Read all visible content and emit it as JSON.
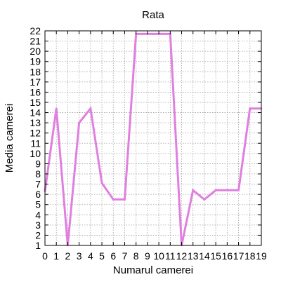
{
  "chart_data": {
    "type": "line",
    "title": "Rata",
    "xlabel": "Numarul camerei",
    "ylabel": "Media camerei",
    "xlim": [
      0,
      19
    ],
    "ylim": [
      1,
      22
    ],
    "x_ticks": [
      0,
      1,
      2,
      3,
      4,
      5,
      6,
      7,
      8,
      9,
      10,
      11,
      12,
      13,
      14,
      15,
      16,
      17,
      18,
      19
    ],
    "y_ticks": [
      1,
      2,
      3,
      4,
      5,
      6,
      7,
      8,
      9,
      10,
      11,
      12,
      13,
      14,
      15,
      16,
      17,
      18,
      19,
      20,
      21,
      22
    ],
    "grid": true,
    "legend": "none",
    "series": [
      {
        "color": "#e07fe0",
        "x": [
          0,
          1,
          2,
          3,
          4,
          5,
          6,
          7,
          8,
          9,
          10,
          11,
          12,
          13,
          14,
          15,
          16,
          17,
          18,
          19
        ],
        "values": [
          6.3,
          14.4,
          1,
          13,
          14.4,
          7.1,
          5.5,
          5.5,
          21.7,
          21.7,
          21.7,
          21.7,
          1,
          6.4,
          5.5,
          6.4,
          6.4,
          6.4,
          14.4,
          14.4
        ]
      }
    ]
  }
}
